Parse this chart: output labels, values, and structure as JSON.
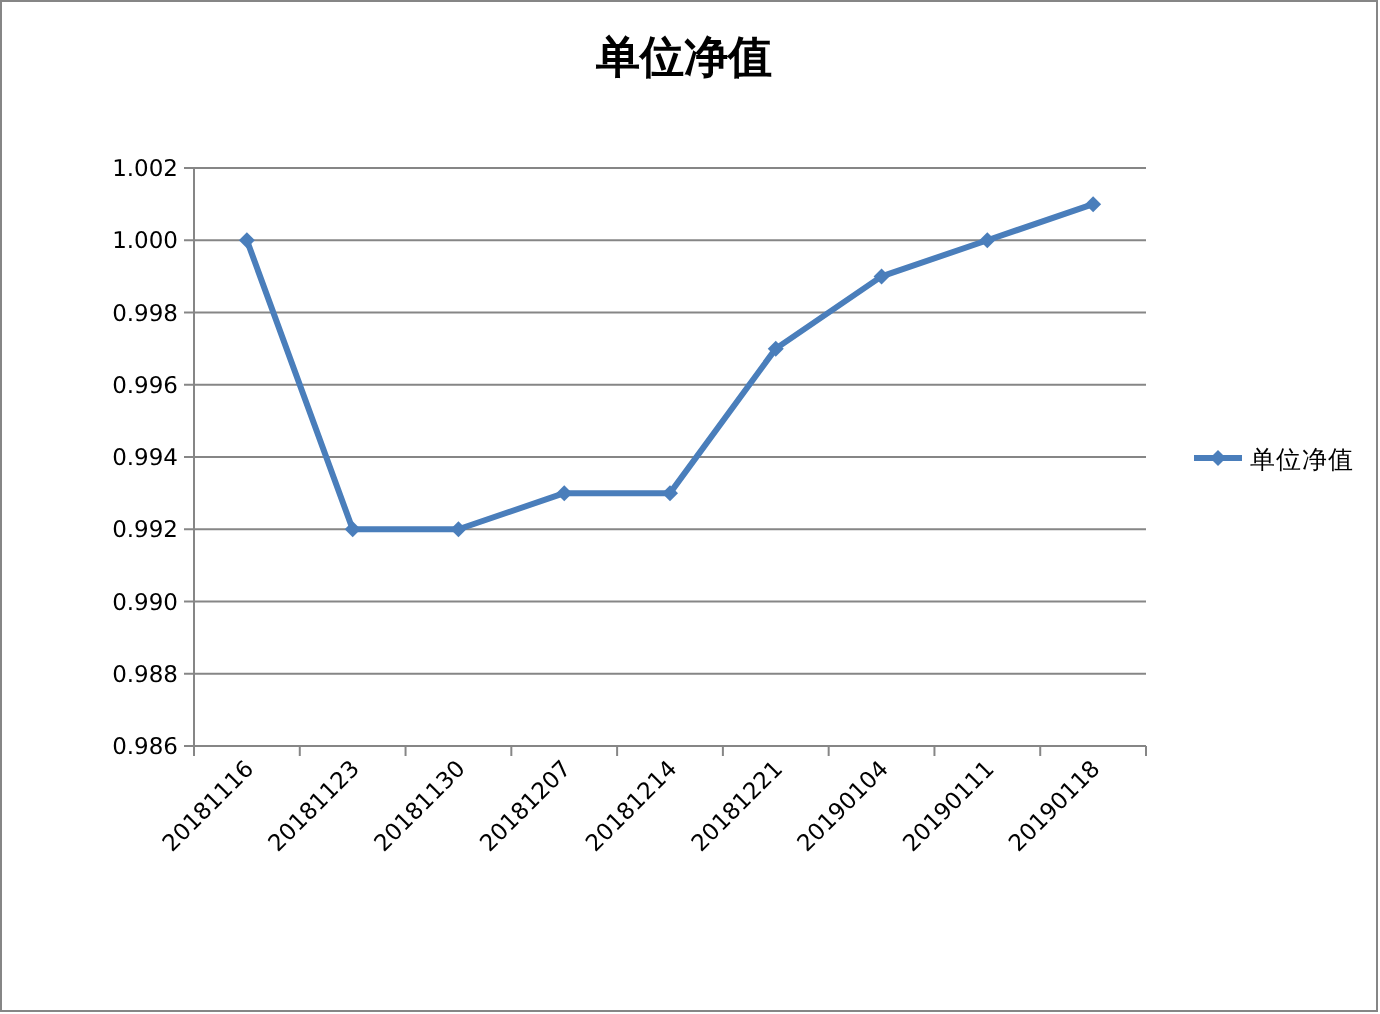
{
  "chart_data": {
    "type": "line",
    "title": "单位净值",
    "categories": [
      "20181116",
      "20181123",
      "20181130",
      "20181207",
      "20181214",
      "20181221",
      "20190104",
      "20190111",
      "20190118"
    ],
    "series": [
      {
        "name": "单位净值",
        "color": "#4a7ebb",
        "values": [
          1.0,
          0.992,
          0.992,
          0.993,
          0.993,
          0.997,
          0.999,
          1.0,
          1.001
        ]
      }
    ],
    "ylim": [
      0.986,
      1.002
    ],
    "yticks": [
      {
        "value": 0.986,
        "label": "0.986"
      },
      {
        "value": 0.988,
        "label": "0.988"
      },
      {
        "value": 0.99,
        "label": "0.990"
      },
      {
        "value": 0.992,
        "label": "0.992"
      },
      {
        "value": 0.994,
        "label": "0.994"
      },
      {
        "value": 0.996,
        "label": "0.996"
      },
      {
        "value": 0.998,
        "label": "0.998"
      },
      {
        "value": 1.0,
        "label": "1.000"
      },
      {
        "value": 1.002,
        "label": "1.002"
      }
    ],
    "grid": "y",
    "legend": "right",
    "marker": "diamond",
    "line_style": "solid"
  }
}
